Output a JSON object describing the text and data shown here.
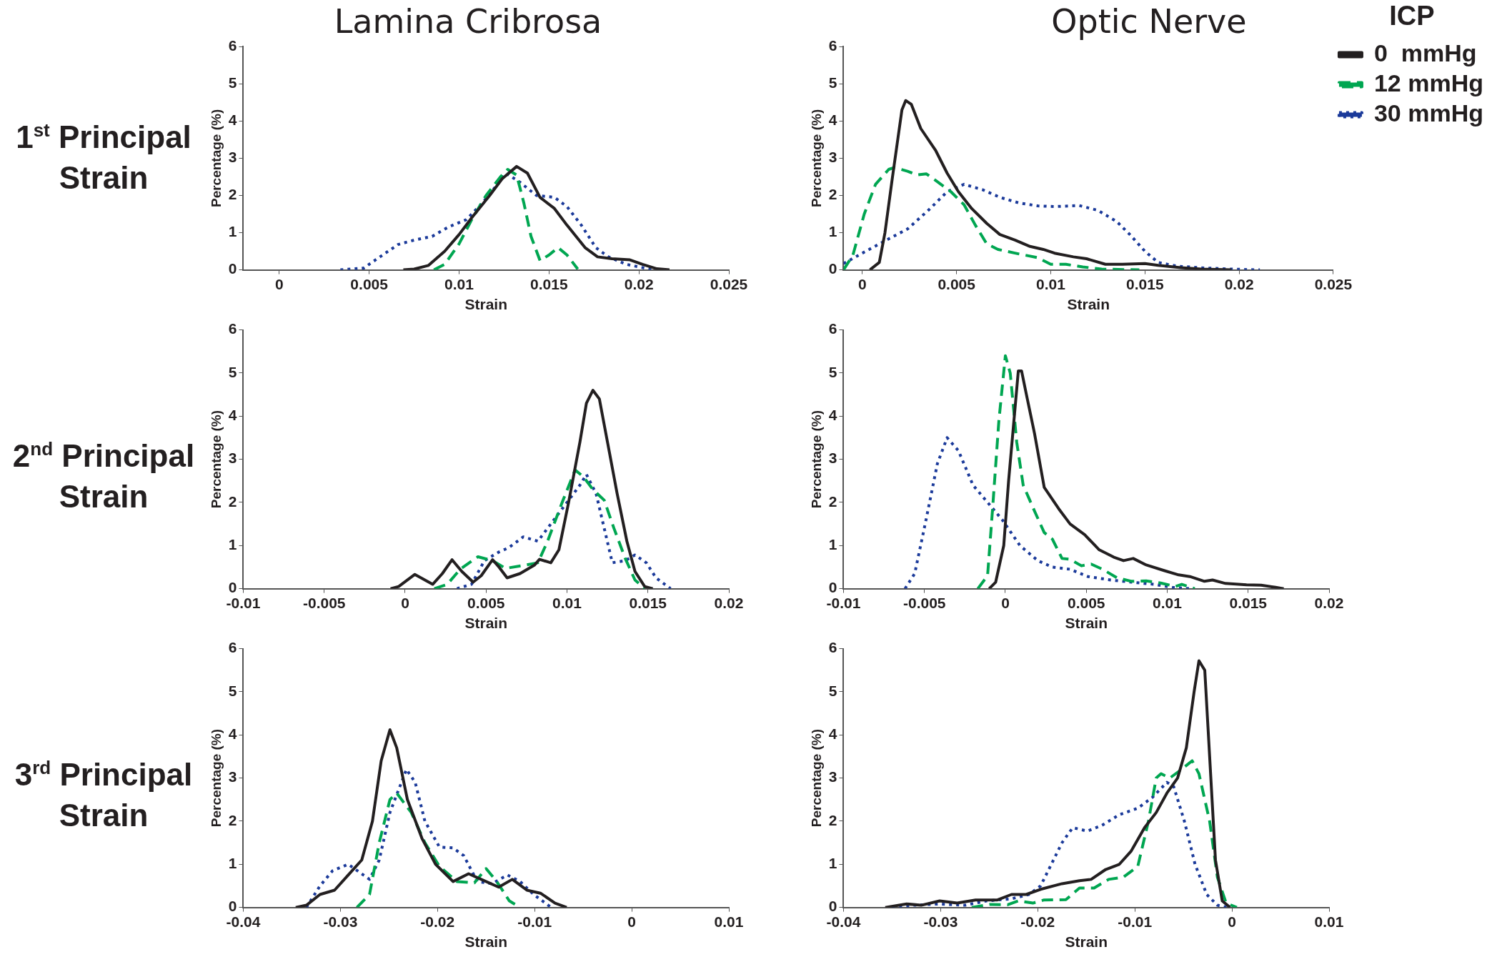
{
  "chart_data": [
    {
      "type": "line",
      "title": "Lamina Cribrosa",
      "xlabel": "Strain",
      "ylabel": "Percentage (%)",
      "annotations": [
        "1$^{st}$ Principal Strain"
      ],
      "xlim": [
        -0.002,
        0.025
      ],
      "xticks": [
        0,
        0.005,
        0.01,
        0.015,
        0.02,
        0.025
      ],
      "ylim": [
        0,
        6
      ],
      "yticks": [
        0,
        1,
        2,
        3,
        4,
        5,
        6
      ],
      "grid": false,
      "marker": "none",
      "legend": false,
      "series": [
        {
          "color": "#231f20",
          "line_style": "solid",
          "x": [
            0.0069,
            0.0075,
            0.0083,
            0.0092,
            0.01,
            0.0107,
            0.0117,
            0.0124,
            0.0132,
            0.0138,
            0.0145,
            0.0153,
            0.016,
            0.017,
            0.0177,
            0.0185,
            0.0195,
            0.0202,
            0.021,
            0.0217
          ],
          "values": [
            0,
            0.02,
            0.12,
            0.5,
            0.95,
            1.4,
            2.0,
            2.45,
            2.78,
            2.6,
            1.95,
            1.65,
            1.2,
            0.6,
            0.35,
            0.3,
            0.27,
            0.15,
            0.03,
            0
          ]
        },
        {
          "color": "#00a651",
          "line_style": "dashed",
          "x": [
            0.0086,
            0.0092,
            0.01,
            0.0107,
            0.0115,
            0.0123,
            0.0127,
            0.0132,
            0.0136,
            0.014,
            0.0145,
            0.015,
            0.0155,
            0.016,
            0.0166
          ],
          "values": [
            0,
            0.15,
            0.7,
            1.35,
            2.0,
            2.5,
            2.7,
            2.55,
            1.8,
            0.9,
            0.25,
            0.4,
            0.6,
            0.4,
            0.02
          ]
        },
        {
          "color": "#1b3a9a",
          "line_style": "dotted",
          "x": [
            0.0034,
            0.0047,
            0.0056,
            0.0066,
            0.0075,
            0.0085,
            0.0094,
            0.0104,
            0.0113,
            0.0123,
            0.0126,
            0.0134,
            0.0143,
            0.0153,
            0.016,
            0.0168,
            0.0176,
            0.0183,
            0.0193,
            0.0208
          ],
          "values": [
            0,
            0.05,
            0.35,
            0.68,
            0.8,
            0.9,
            1.15,
            1.35,
            1.8,
            2.4,
            2.6,
            2.35,
            2.0,
            1.95,
            1.7,
            1.2,
            0.6,
            0.35,
            0.15,
            0
          ]
        }
      ]
    },
    {
      "type": "line",
      "title": "Optic Nerve",
      "xlabel": "Strain",
      "ylabel": "Percentage (%)",
      "legend_title": "ICP",
      "xlim": [
        -0.001,
        0.025
      ],
      "xticks": [
        0,
        0.005,
        0.01,
        0.015,
        0.02,
        0.025
      ],
      "ylim": [
        0,
        6
      ],
      "yticks": [
        0,
        1,
        2,
        3,
        4,
        5,
        6
      ],
      "grid": false,
      "marker": "none",
      "legend": "right",
      "series": [
        {
          "name": "0  mmHg",
          "color": "#231f20",
          "line_style": "solid",
          "x": [
            0.0004,
            0.0009,
            0.0012,
            0.0016,
            0.0021,
            0.0023,
            0.0026,
            0.0031,
            0.0039,
            0.0045,
            0.0051,
            0.0058,
            0.0066,
            0.0073,
            0.0081,
            0.0089,
            0.0096,
            0.0102,
            0.0112,
            0.0119,
            0.0129,
            0.0138,
            0.015,
            0.0157,
            0.0169,
            0.018,
            0.0196
          ],
          "values": [
            0,
            0.2,
            1.0,
            2.5,
            4.3,
            4.55,
            4.45,
            3.8,
            3.2,
            2.6,
            2.1,
            1.65,
            1.25,
            0.95,
            0.8,
            0.63,
            0.55,
            0.45,
            0.35,
            0.3,
            0.15,
            0.15,
            0.17,
            0.12,
            0.06,
            0.02,
            0
          ]
        },
        {
          "name": "12 mmHg",
          "color": "#00a651",
          "line_style": "dashed",
          "x": [
            -0.001,
            -0.0005,
            0.0001,
            0.0007,
            0.0014,
            0.0017,
            0.0024,
            0.0029,
            0.0034,
            0.0039,
            0.0047,
            0.0054,
            0.006,
            0.0066,
            0.0072,
            0.0081,
            0.0093,
            0.01,
            0.0108,
            0.0117,
            0.0127,
            0.0147
          ],
          "values": [
            0,
            0.4,
            1.5,
            2.3,
            2.7,
            2.75,
            2.65,
            2.55,
            2.58,
            2.4,
            2.1,
            1.75,
            1.2,
            0.7,
            0.55,
            0.45,
            0.33,
            0.15,
            0.15,
            0.08,
            0.02,
            0
          ]
        },
        {
          "name": "30 mmHg",
          "color": "#1b3a9a",
          "line_style": "dotted",
          "x": [
            -0.001,
            0,
            0.0012,
            0.0024,
            0.0035,
            0.0045,
            0.0054,
            0.0064,
            0.0073,
            0.0083,
            0.0093,
            0.0102,
            0.0115,
            0.0125,
            0.0135,
            0.0142,
            0.015,
            0.0157,
            0.0167,
            0.0182,
            0.0196,
            0.0211
          ],
          "values": [
            0.17,
            0.45,
            0.78,
            1.1,
            1.6,
            2.1,
            2.3,
            2.15,
            1.95,
            1.8,
            1.72,
            1.7,
            1.73,
            1.6,
            1.3,
            0.95,
            0.5,
            0.2,
            0.1,
            0.05,
            0.02,
            0
          ]
        }
      ]
    },
    {
      "type": "line",
      "xlabel": "Strain",
      "ylabel": "Percentage (%)",
      "annotations": [
        "2$^{nd}$ Principal Strain"
      ],
      "xlim": [
        -0.01,
        0.02
      ],
      "xticks": [
        -0.01,
        -0.005,
        0,
        0.005,
        0.01,
        0.015,
        0.02
      ],
      "ylim": [
        0,
        6
      ],
      "yticks": [
        0,
        1,
        2,
        3,
        4,
        5,
        6
      ],
      "grid": false,
      "marker": "none",
      "legend": false,
      "series": [
        {
          "color": "#231f20",
          "line_style": "solid",
          "x": [
            -0.0009,
            -0.0004,
            0.0006,
            0.0017,
            0.0023,
            0.0029,
            0.0035,
            0.0042,
            0.0047,
            0.0054,
            0.0058,
            0.0063,
            0.0071,
            0.008,
            0.0083,
            0.009,
            0.0095,
            0.0101,
            0.0108,
            0.0112,
            0.0116,
            0.012,
            0.0125,
            0.0131,
            0.0137,
            0.0142,
            0.0148,
            0.0153
          ],
          "values": [
            0,
            0.05,
            0.33,
            0.1,
            0.35,
            0.67,
            0.4,
            0.15,
            0.3,
            0.67,
            0.5,
            0.25,
            0.35,
            0.55,
            0.68,
            0.6,
            0.9,
            2.0,
            3.4,
            4.3,
            4.6,
            4.4,
            3.4,
            2.2,
            1.1,
            0.4,
            0.05,
            0
          ]
        },
        {
          "color": "#00a651",
          "line_style": "dashed",
          "x": [
            0.0018,
            0.0026,
            0.0034,
            0.0045,
            0.0054,
            0.0062,
            0.0075,
            0.0082,
            0.0088,
            0.0097,
            0.0105,
            0.011,
            0.0116,
            0.0123,
            0.0129,
            0.0136,
            0.0142,
            0.0148
          ],
          "values": [
            0,
            0.1,
            0.45,
            0.74,
            0.65,
            0.47,
            0.55,
            0.6,
            1.1,
            2.0,
            2.75,
            2.6,
            2.3,
            2.05,
            1.4,
            0.7,
            0.2,
            0
          ]
        },
        {
          "color": "#1b3a9a",
          "line_style": "dotted",
          "x": [
            0.0032,
            0.0041,
            0.0049,
            0.0058,
            0.0064,
            0.0073,
            0.0082,
            0.009,
            0.0099,
            0.0108,
            0.0112,
            0.0118,
            0.0123,
            0.0128,
            0.0136,
            0.0142,
            0.0149,
            0.0155,
            0.0164
          ],
          "values": [
            0,
            0.1,
            0.65,
            0.85,
            0.95,
            1.2,
            1.1,
            1.5,
            1.95,
            2.4,
            2.65,
            2.2,
            1.4,
            0.6,
            0.65,
            0.78,
            0.6,
            0.25,
            0
          ]
        }
      ]
    },
    {
      "type": "line",
      "xlabel": "Strain",
      "ylabel": "Percentage (%)",
      "xlim": [
        -0.01,
        0.02
      ],
      "xticks": [
        -0.01,
        -0.005,
        0,
        0.005,
        0.01,
        0.015,
        0.02
      ],
      "ylim": [
        0,
        6
      ],
      "yticks": [
        0,
        1,
        2,
        3,
        4,
        5,
        6
      ],
      "grid": false,
      "marker": "none",
      "legend": false,
      "series": [
        {
          "color": "#231f20",
          "line_style": "solid",
          "x": [
            -0.001,
            -0.0006,
            -0.0001,
            0.0002,
            0.0006,
            0.0008,
            0.001,
            0.0013,
            0.0018,
            0.0024,
            0.0033,
            0.004,
            0.0049,
            0.0058,
            0.0067,
            0.0073,
            0.0079,
            0.0087,
            0.0098,
            0.0107,
            0.0114,
            0.0123,
            0.0128,
            0.0136,
            0.0149,
            0.0158,
            0.0167,
            0.0172
          ],
          "values": [
            0,
            0.15,
            1.0,
            2.5,
            4.2,
            5.05,
            5.05,
            4.5,
            3.6,
            2.35,
            1.85,
            1.5,
            1.25,
            0.9,
            0.73,
            0.65,
            0.7,
            0.55,
            0.42,
            0.32,
            0.28,
            0.17,
            0.2,
            0.12,
            0.09,
            0.08,
            0.03,
            0
          ]
        },
        {
          "color": "#00a651",
          "line_style": "dashed",
          "x": [
            -0.0017,
            -0.0011,
            -0.0008,
            -0.0004,
            0,
            0.0003,
            0.0007,
            0.0011,
            0.0018,
            0.0024,
            0.0029,
            0.0035,
            0.004,
            0.0047,
            0.0053,
            0.006,
            0.0069,
            0.0078,
            0.0087,
            0.0096,
            0.0105,
            0.0109,
            0.0117
          ],
          "values": [
            0,
            0.3,
            1.8,
            3.9,
            5.4,
            5.0,
            3.4,
            2.4,
            1.8,
            1.3,
            1.15,
            0.7,
            0.68,
            0.53,
            0.57,
            0.45,
            0.25,
            0.17,
            0.18,
            0.13,
            0.05,
            0.1,
            0
          ]
        },
        {
          "color": "#1b3a9a",
          "line_style": "dotted",
          "x": [
            -0.0062,
            -0.0056,
            -0.0049,
            -0.0042,
            -0.0036,
            -0.0029,
            -0.002,
            -0.0011,
            -0.0002,
            0.0009,
            0.002,
            0.0029,
            0.004,
            0.0051,
            0.0065,
            0.0078,
            0.0092,
            0.0103,
            0.0114
          ],
          "values": [
            0,
            0.35,
            1.6,
            2.9,
            3.5,
            3.2,
            2.4,
            2.0,
            1.6,
            1.0,
            0.65,
            0.5,
            0.45,
            0.28,
            0.2,
            0.15,
            0.1,
            0.03,
            0
          ]
        }
      ]
    },
    {
      "type": "line",
      "xlabel": "Strain",
      "ylabel": "Percentage (%)",
      "annotations": [
        "3$^{rd}$ Principal Strain"
      ],
      "xlim": [
        -0.04,
        0.01
      ],
      "xticks": [
        -0.04,
        -0.03,
        -0.02,
        -0.01,
        0,
        0.01
      ],
      "ylim": [
        0,
        6
      ],
      "yticks": [
        0,
        1,
        2,
        3,
        4,
        5,
        6
      ],
      "grid": false,
      "marker": "none",
      "legend": false,
      "series": [
        {
          "color": "#231f20",
          "line_style": "solid",
          "x": [
            -0.0346,
            -0.0335,
            -0.0321,
            -0.0306,
            -0.0292,
            -0.0278,
            -0.0267,
            -0.0258,
            -0.0249,
            -0.0242,
            -0.0231,
            -0.0216,
            -0.0202,
            -0.0184,
            -0.0168,
            -0.0155,
            -0.0137,
            -0.0123,
            -0.0108,
            -0.0094,
            -0.0079,
            -0.0067
          ],
          "values": [
            0,
            0.05,
            0.3,
            0.4,
            0.75,
            1.1,
            2.0,
            3.4,
            4.12,
            3.7,
            2.5,
            1.6,
            1.0,
            0.6,
            0.78,
            0.65,
            0.47,
            0.65,
            0.4,
            0.33,
            0.1,
            0
          ]
        },
        {
          "color": "#00a651",
          "line_style": "dashed",
          "x": [
            -0.0283,
            -0.027,
            -0.026,
            -0.0249,
            -0.0242,
            -0.0227,
            -0.0213,
            -0.0198,
            -0.018,
            -0.0162,
            -0.015,
            -0.0139,
            -0.0126,
            -0.0115
          ],
          "values": [
            0,
            0.3,
            1.5,
            2.5,
            2.65,
            2.2,
            1.5,
            0.95,
            0.6,
            0.57,
            0.9,
            0.6,
            0.15,
            0
          ]
        },
        {
          "color": "#1b3a9a",
          "line_style": "dotted",
          "x": [
            -0.0335,
            -0.0321,
            -0.0308,
            -0.0292,
            -0.027,
            -0.026,
            -0.0249,
            -0.0232,
            -0.0223,
            -0.0213,
            -0.0198,
            -0.0184,
            -0.0173,
            -0.0159,
            -0.0144,
            -0.0128,
            -0.0115,
            -0.0101,
            -0.0083
          ],
          "values": [
            0,
            0.5,
            0.85,
            1.0,
            0.65,
            1.1,
            2.2,
            3.2,
            2.9,
            2.0,
            1.4,
            1.38,
            1.2,
            0.6,
            0.55,
            0.75,
            0.6,
            0.3,
            0
          ]
        }
      ]
    },
    {
      "type": "line",
      "xlabel": "Strain",
      "ylabel": "Percentage (%)",
      "xlim": [
        -0.04,
        0.01
      ],
      "xticks": [
        -0.04,
        -0.03,
        -0.02,
        -0.01,
        0,
        0.01
      ],
      "ylim": [
        0,
        6
      ],
      "yticks": [
        0,
        1,
        2,
        3,
        4,
        5,
        6
      ],
      "grid": false,
      "marker": "none",
      "legend": false,
      "series": [
        {
          "color": "#231f20",
          "line_style": "solid",
          "x": [
            -0.0357,
            -0.0335,
            -0.032,
            -0.0301,
            -0.0283,
            -0.0264,
            -0.0242,
            -0.0227,
            -0.0212,
            -0.0197,
            -0.0175,
            -0.0157,
            -0.0145,
            -0.013,
            -0.0116,
            -0.0104,
            -0.009,
            -0.0078,
            -0.0067,
            -0.0056,
            -0.0047,
            -0.0039,
            -0.0034,
            -0.0028,
            -0.0023,
            -0.0017,
            -0.001,
            -0.0002
          ],
          "values": [
            0,
            0.08,
            0.05,
            0.15,
            0.1,
            0.17,
            0.17,
            0.3,
            0.3,
            0.42,
            0.55,
            0.62,
            0.65,
            0.88,
            1.0,
            1.3,
            1.85,
            2.2,
            2.65,
            3.0,
            3.7,
            5.0,
            5.72,
            5.5,
            3.5,
            1.1,
            0.15,
            0
          ]
        },
        {
          "color": "#00a651",
          "line_style": "dashed",
          "x": [
            -0.0268,
            -0.0249,
            -0.0231,
            -0.022,
            -0.0205,
            -0.0194,
            -0.0171,
            -0.0157,
            -0.0142,
            -0.0127,
            -0.0112,
            -0.0097,
            -0.0086,
            -0.0078,
            -0.0073,
            -0.0064,
            -0.0052,
            -0.0041,
            -0.0034,
            -0.0023,
            -0.0015,
            -0.0006,
            0.0005
          ],
          "values": [
            0,
            0.07,
            0.06,
            0.15,
            0.1,
            0.17,
            0.18,
            0.45,
            0.45,
            0.65,
            0.7,
            0.95,
            2.0,
            3.0,
            3.1,
            3.0,
            3.2,
            3.4,
            3.1,
            2.0,
            0.7,
            0.1,
            0
          ]
        },
        {
          "color": "#1b3a9a",
          "line_style": "dotted",
          "x": [
            -0.035,
            -0.0328,
            -0.0301,
            -0.0275,
            -0.0253,
            -0.0227,
            -0.0209,
            -0.0197,
            -0.0186,
            -0.0175,
            -0.0164,
            -0.0149,
            -0.0134,
            -0.0116,
            -0.0097,
            -0.0082,
            -0.0067,
            -0.006,
            -0.0049,
            -0.0038,
            -0.0026,
            -0.0015,
            -0.0004
          ],
          "values": [
            0,
            0.05,
            0.08,
            0.05,
            0.15,
            0.2,
            0.3,
            0.5,
            1.0,
            1.5,
            1.85,
            1.77,
            1.9,
            2.15,
            2.3,
            2.55,
            2.9,
            2.8,
            2.0,
            1.0,
            0.3,
            0.05,
            0
          ]
        }
      ]
    }
  ]
}
